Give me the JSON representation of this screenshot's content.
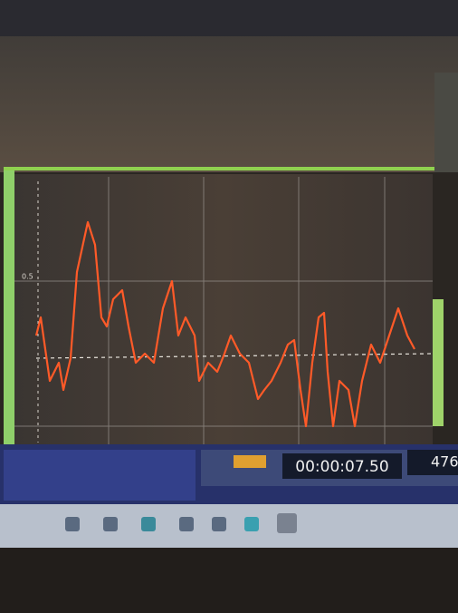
{
  "plot": {
    "y_label": "0.5"
  },
  "status": {
    "timer": "00:00:07.50",
    "counter": "476"
  }
}
